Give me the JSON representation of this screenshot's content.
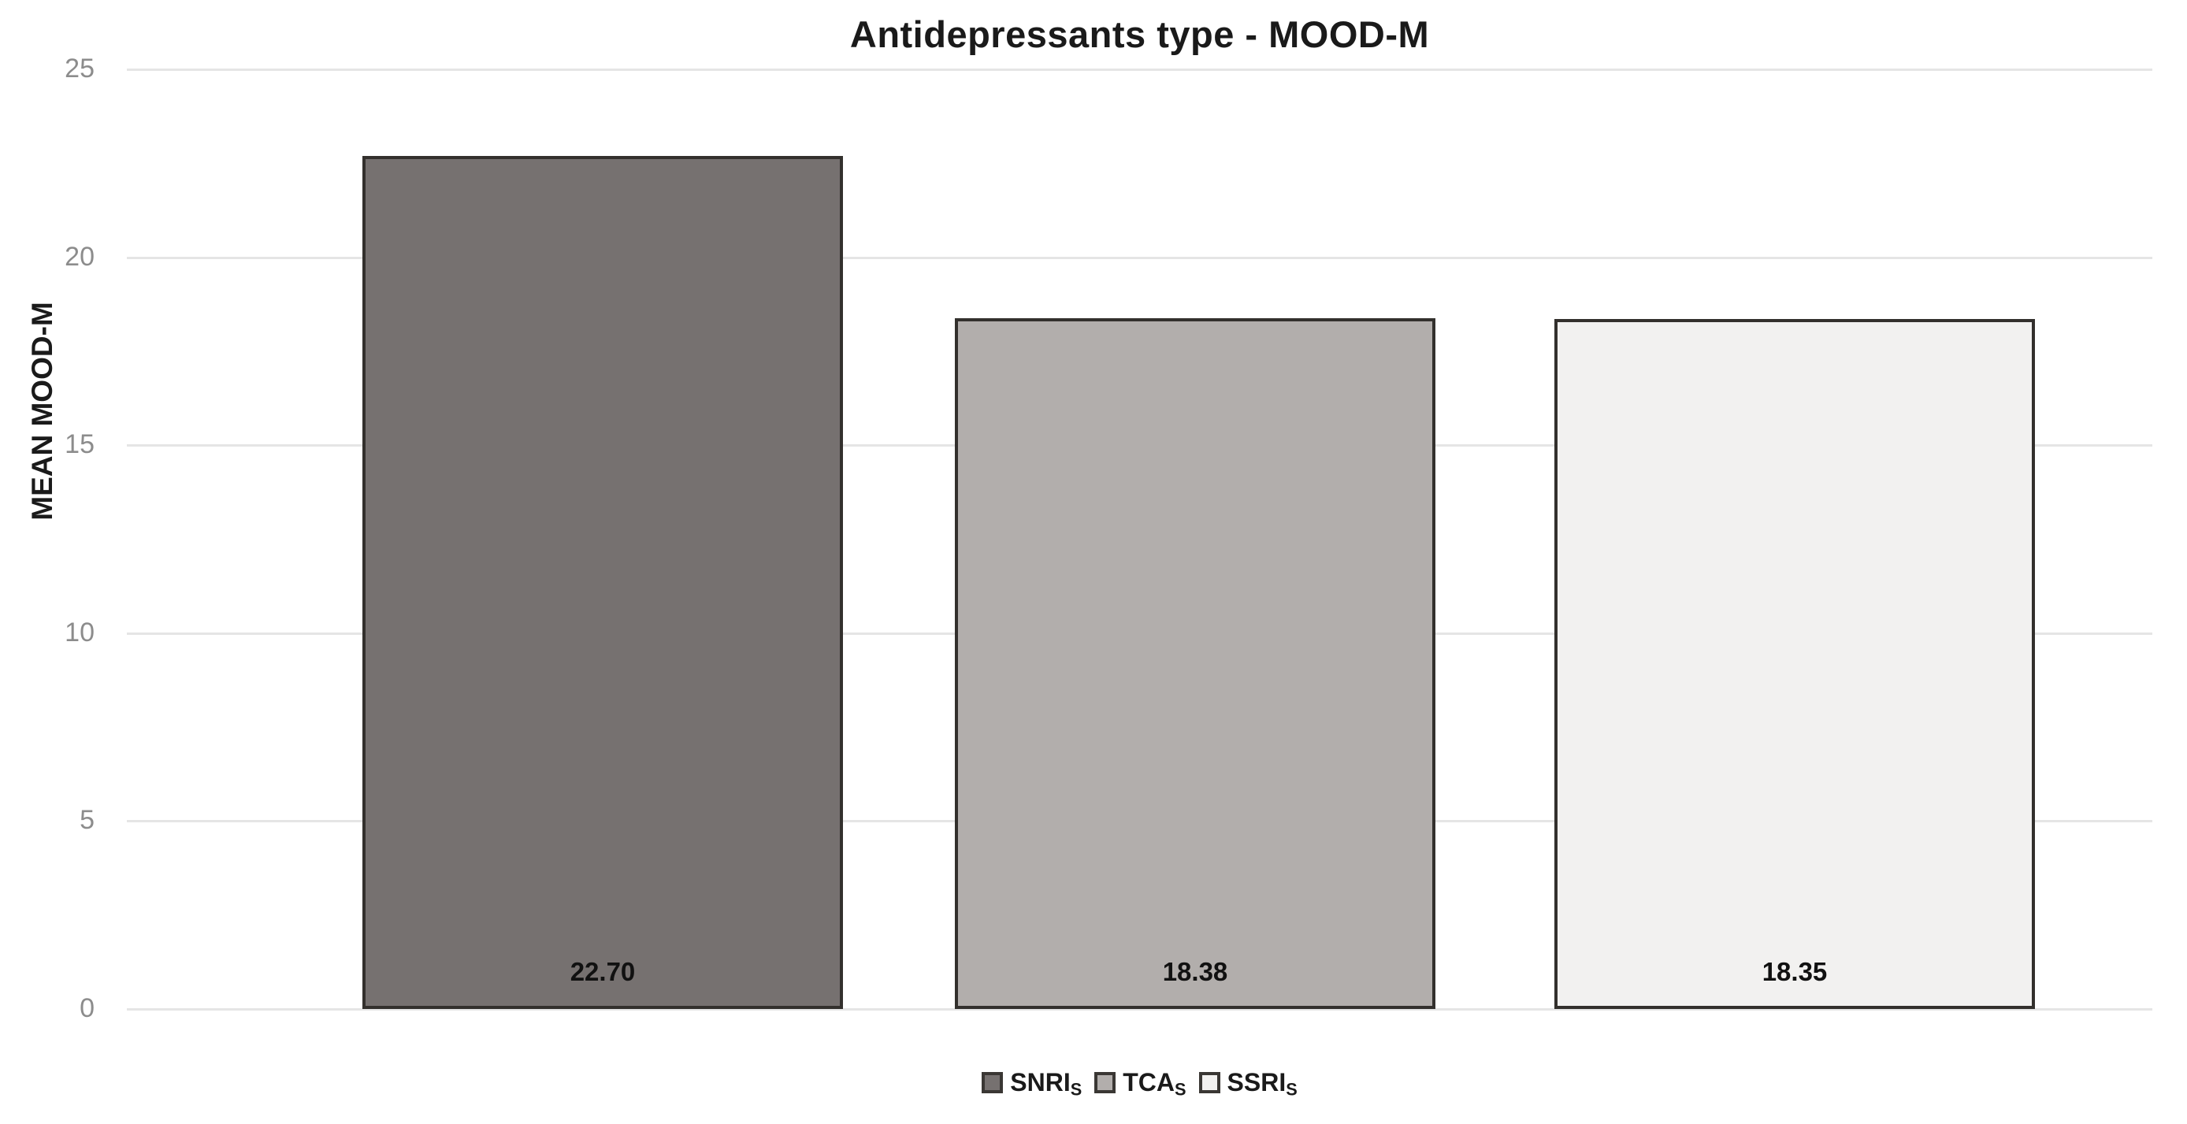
{
  "chart_data": {
    "type": "bar",
    "title": "Antidepressants type - MOOD-M",
    "ylabel": "MEAN MOOD-M",
    "xlabel": "",
    "ylim": [
      0,
      25
    ],
    "yticks": [
      0,
      5,
      10,
      15,
      20,
      25
    ],
    "grid": true,
    "legend_position": "bottom",
    "categories": [
      "SNRIs",
      "TCAs",
      "SSRIs"
    ],
    "series": [
      {
        "name": "MEAN MOOD-M",
        "values": [
          22.7,
          18.38,
          18.35
        ]
      }
    ],
    "data_labels": [
      "22.70",
      "18.38",
      "18.35"
    ],
    "legend": [
      {
        "label": "SNRI",
        "sub": "S",
        "color": "#767170"
      },
      {
        "label": "TCA",
        "sub": "S",
        "color": "#b2aeac"
      },
      {
        "label": "SSRI",
        "sub": "S",
        "color": "#f2f1f0"
      }
    ],
    "colors": {
      "bar_border": "#33302d",
      "gridline": "#e5e5e5",
      "tick_label": "#8c8c8c",
      "text": "#1a1a1a",
      "background": "#ffffff"
    }
  }
}
